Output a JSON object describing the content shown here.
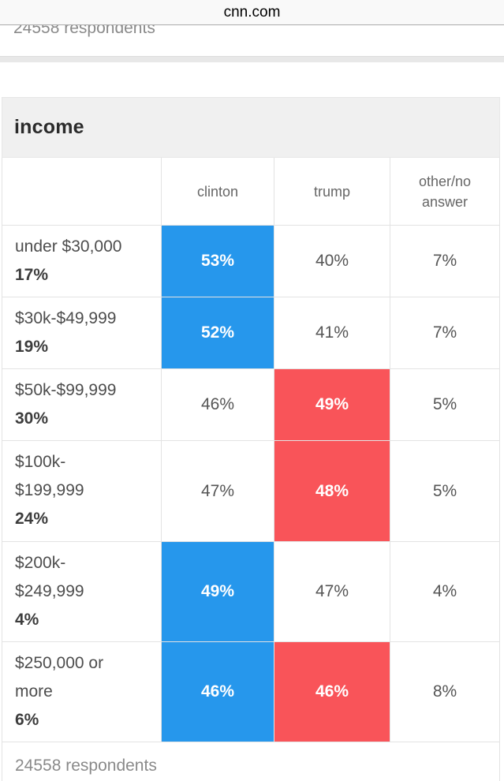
{
  "browser": {
    "url_label": "cnn.com"
  },
  "previous_table": {
    "footer": "24558 respondents"
  },
  "poll": {
    "section_title": "income",
    "columns": {
      "clinton": "clinton",
      "trump": "trump",
      "other": "other/no\nanswer"
    },
    "rows": [
      {
        "label": "under $30,000",
        "share": "17%",
        "clinton": "53%",
        "trump": "40%",
        "other": "7%",
        "winner": "clinton"
      },
      {
        "label": "$30k-$49,999",
        "share": "19%",
        "clinton": "52%",
        "trump": "41%",
        "other": "7%",
        "winner": "clinton"
      },
      {
        "label": "$50k-$99,999",
        "share": "30%",
        "clinton": "46%",
        "trump": "49%",
        "other": "5%",
        "winner": "trump"
      },
      {
        "label": "$100k-\n$199,999",
        "share": "24%",
        "clinton": "47%",
        "trump": "48%",
        "other": "5%",
        "winner": "trump"
      },
      {
        "label": "$200k-\n$249,999",
        "share": "4%",
        "clinton": "49%",
        "trump": "47%",
        "other": "4%",
        "winner": "clinton"
      },
      {
        "label": "$250,000 or\nmore",
        "share": "6%",
        "clinton": "46%",
        "trump": "46%",
        "other": "8%",
        "winner": "both"
      }
    ],
    "footer": "24558 respondents",
    "colors": {
      "clinton_highlight": "#2697ec",
      "trump_highlight": "#f95459"
    }
  },
  "chart_data": {
    "type": "table",
    "title": "income",
    "columns": [
      "clinton",
      "trump",
      "other/no answer"
    ],
    "rows": [
      {
        "category": "under $30,000",
        "share_of_respondents_pct": 17,
        "clinton_pct": 53,
        "trump_pct": 40,
        "other_no_answer_pct": 7,
        "highlighted": "clinton"
      },
      {
        "category": "$30k-$49,999",
        "share_of_respondents_pct": 19,
        "clinton_pct": 52,
        "trump_pct": 41,
        "other_no_answer_pct": 7,
        "highlighted": "clinton"
      },
      {
        "category": "$50k-$99,999",
        "share_of_respondents_pct": 30,
        "clinton_pct": 46,
        "trump_pct": 49,
        "other_no_answer_pct": 5,
        "highlighted": "trump"
      },
      {
        "category": "$100k-$199,999",
        "share_of_respondents_pct": 24,
        "clinton_pct": 47,
        "trump_pct": 48,
        "other_no_answer_pct": 5,
        "highlighted": "trump"
      },
      {
        "category": "$200k-$249,999",
        "share_of_respondents_pct": 4,
        "clinton_pct": 49,
        "trump_pct": 47,
        "other_no_answer_pct": 4,
        "highlighted": "clinton"
      },
      {
        "category": "$250,000 or more",
        "share_of_respondents_pct": 6,
        "clinton_pct": 46,
        "trump_pct": 46,
        "other_no_answer_pct": 8,
        "highlighted": "both"
      }
    ],
    "respondents": 24558
  }
}
